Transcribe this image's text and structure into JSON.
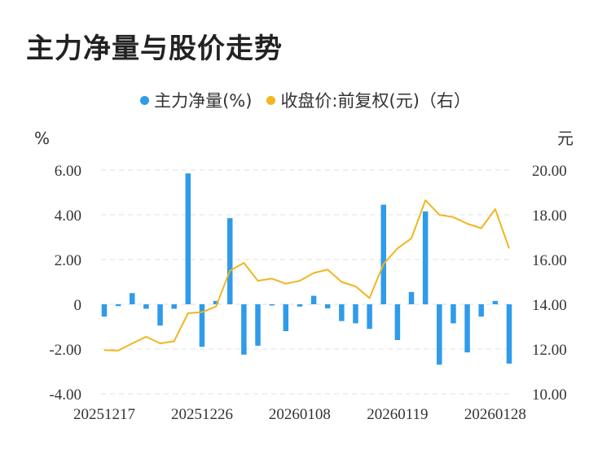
{
  "title": "主力净量与股价走势",
  "legend": {
    "series1": "主力净量(%)",
    "series2": "收盘价:前复权(元)（右）"
  },
  "colors": {
    "bar": "#2f9bea",
    "line": "#f1b520",
    "grid": "#e2e2e2"
  },
  "chart_data": {
    "type": "bar+line",
    "left_unit": "%",
    "right_unit": "元",
    "y_left": {
      "min": -4,
      "max": 6,
      "ticks": [
        "6.00",
        "4.00",
        "2.00",
        "0",
        "-2.00",
        "-4.00"
      ],
      "tick_values": [
        6,
        4,
        2,
        0,
        -2,
        -4
      ]
    },
    "y_right": {
      "min": 10,
      "max": 20,
      "ticks": [
        "20.00",
        "18.00",
        "16.00",
        "14.00",
        "12.00",
        "10.00"
      ],
      "tick_values": [
        20,
        18,
        16,
        14,
        12,
        10
      ]
    },
    "x_labels": [
      "20251217",
      "20251226",
      "20260108",
      "20260119",
      "20260128"
    ],
    "x_label_index": [
      0,
      7,
      14,
      21,
      28
    ],
    "series": [
      {
        "name": "主力净量(%)",
        "kind": "bar",
        "values": [
          -0.55,
          -0.08,
          0.5,
          -0.2,
          -0.95,
          -0.2,
          5.85,
          -1.9,
          0.15,
          3.85,
          -2.25,
          -1.85,
          -0.05,
          -1.2,
          -0.1,
          0.38,
          -0.18,
          -0.75,
          -0.85,
          -1.1,
          4.45,
          -1.6,
          0.55,
          4.15,
          -2.7,
          -0.85,
          -2.15,
          -0.55,
          0.15,
          -2.65
        ]
      },
      {
        "name": "收盘价:前复权(元)",
        "kind": "line",
        "values": [
          11.95,
          11.93,
          12.25,
          12.55,
          12.25,
          12.35,
          13.6,
          13.65,
          13.9,
          15.5,
          15.85,
          15.05,
          15.15,
          14.92,
          15.05,
          15.4,
          15.55,
          15.0,
          14.8,
          14.28,
          15.8,
          16.5,
          16.95,
          18.65,
          18.0,
          17.9,
          17.6,
          17.4,
          18.25,
          16.5
        ]
      }
    ]
  }
}
